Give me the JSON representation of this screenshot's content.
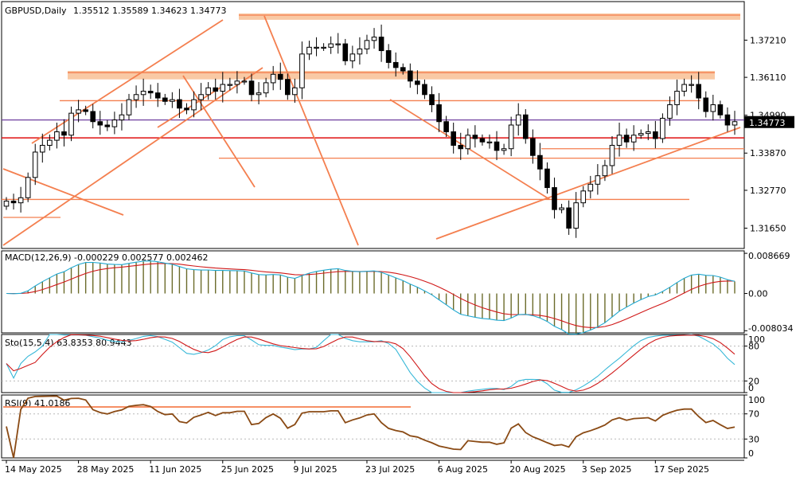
{
  "header": {
    "symbol": "GBPUSD,Daily",
    "ohlc": "1.35512 1.35589 1.34623 1.34773"
  },
  "price_axis": {
    "current_price_label": "1.34773"
  },
  "indicators": {
    "macd": {
      "label": "MACD(12,26,9) -0.000229 0.002577 0.002462"
    },
    "sto": {
      "label": "Sto(15,5,4) 63.8353 80.9443"
    },
    "rsi": {
      "label": "RSI(9) 41.0186"
    }
  },
  "colors": {
    "bull_candle": "#ffffff",
    "bear_candle": "#000000",
    "zone": "#f9c9a4",
    "trendline": "#f47f4f",
    "hline": "#f47f4f",
    "red_level": "#e01010",
    "purple_level": "#6f3fa0",
    "macd_signal": "#20a8d0",
    "macd_main": "#d01818",
    "macd_hist": "#6b6b2a",
    "sto_main": "#38b8d8",
    "sto_signal": "#d01818",
    "rsi_line": "#8a4a14",
    "current_price_box": "#000000"
  },
  "chart_data": [
    {
      "type": "candlestick",
      "title": "GBPUSD,Daily",
      "ylim": [
        1.3105,
        1.3835
      ],
      "y_ticks": [
        1.3721,
        1.3611,
        1.3499,
        1.3387,
        1.3277,
        1.3165
      ],
      "x_tick_labels": [
        "14 May 2025",
        "28 May 2025",
        "11 Jun 2025",
        "25 Jun 2025",
        "9 Jul 2025",
        "23 Jul 2025",
        "6 Aug 2025",
        "20 Aug 2025",
        "3 Sep 2025",
        "17 Sep 2025"
      ],
      "x_tick_index": [
        0,
        10,
        20,
        30,
        40,
        50,
        60,
        70,
        80,
        90
      ],
      "close_series": [
        1.3245,
        1.324,
        1.3255,
        1.3315,
        1.339,
        1.341,
        1.3425,
        1.345,
        1.344,
        1.3505,
        1.3515,
        1.351,
        1.348,
        1.347,
        1.3465,
        1.3485,
        1.35,
        1.3545,
        1.356,
        1.357,
        1.3565,
        1.355,
        1.354,
        1.3545,
        1.352,
        1.3515,
        1.3545,
        1.356,
        1.358,
        1.357,
        1.359,
        1.359,
        1.36,
        1.36,
        1.356,
        1.3565,
        1.3595,
        1.362,
        1.3605,
        1.356,
        1.358,
        1.368,
        1.37,
        1.37,
        1.37,
        1.371,
        1.371,
        1.366,
        1.368,
        1.3695,
        1.372,
        1.373,
        1.369,
        1.3655,
        1.364,
        1.363,
        1.36,
        1.359,
        1.356,
        1.353,
        1.348,
        1.345,
        1.341,
        1.34,
        1.344,
        1.343,
        1.342,
        1.342,
        1.3395,
        1.34,
        1.347,
        1.35,
        1.343,
        1.338,
        1.334,
        1.3285,
        1.322,
        1.3225,
        1.3165,
        1.324,
        1.3275,
        1.3295,
        1.332,
        1.335,
        1.341,
        1.344,
        1.342,
        1.344,
        1.3445,
        1.345,
        1.343,
        1.349,
        1.353,
        1.357,
        1.359,
        1.359,
        1.355,
        1.351,
        1.353,
        1.35,
        1.347,
        1.348
      ],
      "horizontal_levels": [
        1.3795,
        1.3625,
        1.3542,
        1.3485,
        1.3432,
        1.34,
        1.3372,
        1.325
      ],
      "zones": [
        [
          1.3785,
          1.38
        ],
        [
          1.3605,
          1.363
        ]
      ]
    },
    {
      "type": "line",
      "title": "MACD(12,26,9) -0.000229 0.002577 0.002462",
      "ylim": [
        -0.0085,
        0.0092
      ],
      "y_ticks": [
        0.008669,
        0.0,
        -0.008034
      ]
    },
    {
      "type": "line",
      "title": "Sto(15,5,4) 63.8353 80.9443",
      "ylim": [
        0,
        100
      ],
      "y_ticks": [
        100,
        80,
        20,
        0
      ]
    },
    {
      "type": "line",
      "title": "RSI(9) 41.0186",
      "ylim": [
        0,
        100
      ],
      "y_ticks": [
        100,
        70,
        30,
        0
      ]
    }
  ]
}
